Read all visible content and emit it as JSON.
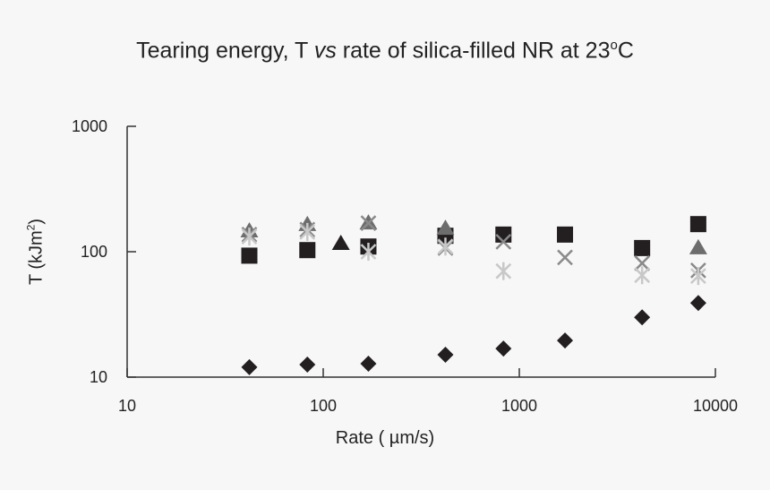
{
  "chart_data": {
    "type": "scatter",
    "title_parts": [
      "Tearing energy, T ",
      "vs",
      " rate of silica-filled NR at 23",
      "o",
      "C"
    ],
    "xlabel": "Rate ( µm/s)",
    "ylabel_parts": [
      "T (kJm",
      "2",
      ")"
    ],
    "xscale": "log",
    "yscale": "log",
    "xlim": [
      10,
      10000
    ],
    "ylim": [
      10,
      1000
    ],
    "xticks": [
      "10",
      "100",
      "1000",
      "10000"
    ],
    "yticks": [
      "10",
      "100",
      "1000"
    ],
    "grid": false,
    "series": [
      {
        "marker": "diamond",
        "color": "#231f20",
        "x": [
          42,
          83,
          170,
          420,
          830,
          1710,
          4230,
          8180
        ],
        "y": [
          12.0,
          12.6,
          12.8,
          15.1,
          16.9,
          19.6,
          30,
          39
        ]
      },
      {
        "marker": "square",
        "color": "#231f20",
        "x": [
          42,
          83,
          170,
          420,
          830,
          1710,
          4230,
          8180
        ],
        "y": [
          93,
          103,
          110,
          134,
          137,
          137,
          107,
          166
        ]
      },
      {
        "marker": "triangle",
        "color": "#6d6d6d",
        "x": [
          42,
          83,
          170,
          420,
          8180
        ],
        "y": [
          146,
          164,
          169,
          153,
          107
        ]
      },
      {
        "marker": "triangle",
        "color": "#231f20",
        "x": [
          123
        ],
        "y": [
          116
        ]
      },
      {
        "marker": "x",
        "color": "#8a8a8a",
        "x": [
          42,
          83,
          170,
          420,
          830,
          1710,
          4230,
          8180
        ],
        "y": [
          137,
          150,
          169,
          107,
          120,
          90,
          81,
          71
        ]
      },
      {
        "marker": "asterisk",
        "color": "#c8c8c8",
        "x": [
          42,
          83,
          170,
          420,
          830,
          4230,
          8180
        ],
        "y": [
          132,
          144,
          100,
          110,
          70,
          65,
          64
        ]
      }
    ]
  }
}
